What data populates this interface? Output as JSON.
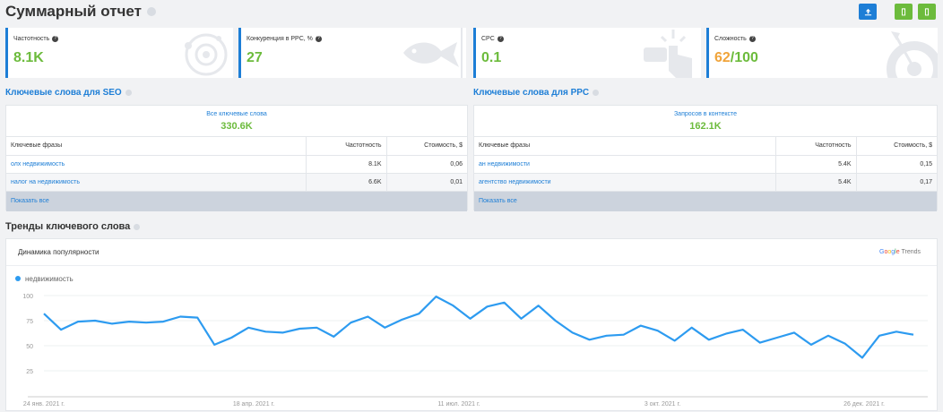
{
  "header": {
    "title": "Суммарный отчет"
  },
  "metrics": [
    {
      "label": "Частотность",
      "value": "8.1K"
    },
    {
      "label": "Конкуренция в PPC, %",
      "value": "27"
    },
    {
      "label": "CPC",
      "value": "0.1"
    },
    {
      "label": "Сложность",
      "value": "62",
      "value_suffix": "/100"
    }
  ],
  "seo": {
    "title": "Ключевые слова для SEO",
    "top_label": "Все ключевые слова",
    "top_value": "330.6K",
    "columns": [
      "Ключевые фразы",
      "Частотность",
      "Стоимость, $"
    ],
    "rows": [
      [
        "олх недвижимость",
        "8.1K",
        "0,06"
      ],
      [
        "налог на недвижимость",
        "6.6K",
        "0,01"
      ]
    ],
    "show_all": "Показать все"
  },
  "ppc": {
    "title": "Ключевые слова для PPC",
    "top_label": "Запросов в контексте",
    "top_value": "162.1K",
    "columns": [
      "Ключевые фразы",
      "Частотность",
      "Стоимость, $"
    ],
    "rows": [
      [
        "ан недвижимости",
        "5.4K",
        "0,15"
      ],
      [
        "агентство недвижимости",
        "5.4K",
        "0,17"
      ]
    ],
    "show_all": "Показать все"
  },
  "trends": {
    "title": "Тренды ключевого слова",
    "subtitle": "Динамика популярности",
    "provider": {
      "g": "G",
      "o1": "o",
      "o2": "o",
      "g2": "g",
      "l": "l",
      "e": "e",
      "word": "Trends"
    },
    "chart_data": {
      "type": "line",
      "series": [
        {
          "name": "недвижимость",
          "color": "#2d9bf0"
        }
      ],
      "ylim": [
        0,
        100
      ],
      "yticks": [
        "100",
        "75",
        "50",
        "25"
      ],
      "xticks": [
        "24 янв. 2021 г.",
        "18 апр. 2021 г.",
        "11 июл. 2021 г.",
        "3 окт. 2021 г.",
        "26 дек. 2021 г."
      ],
      "values": [
        82,
        66,
        74,
        75,
        72,
        74,
        73,
        74,
        79,
        78,
        51,
        58,
        68,
        64,
        63,
        67,
        68,
        59,
        73,
        79,
        68,
        76,
        82,
        99,
        90,
        77,
        89,
        93,
        77,
        90,
        75,
        63,
        56,
        60,
        61,
        70,
        65,
        55,
        68,
        56,
        62,
        66,
        53,
        58,
        63,
        51,
        60,
        52,
        38,
        60,
        64,
        61
      ]
    }
  }
}
